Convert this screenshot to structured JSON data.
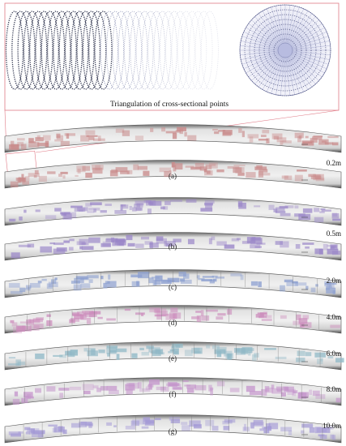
{
  "inset": {
    "title": "Triangulation of cross-sectional points"
  },
  "panels": [
    {
      "caption": "(a)",
      "scale": "0.2m",
      "tint": "#c98a8a"
    },
    {
      "caption": "(b)",
      "scale": "0.5m",
      "tint": "#9a86c8"
    },
    {
      "caption": "(c)",
      "scale": "2.0m",
      "tint": "#8a9ed0"
    },
    {
      "caption": "(d)",
      "scale": "4.0m",
      "tint": "#cc8cbc"
    },
    {
      "caption": "(e)",
      "scale": "6.0m",
      "tint": "#8fb8c6"
    },
    {
      "caption": "(f)",
      "scale": "8.0m",
      "tint": "#c596cc"
    },
    {
      "caption": "(g)",
      "scale": "10.0m",
      "tint": "#a49ad6"
    }
  ],
  "colors": {
    "frame": "#e06a7a",
    "ring_dark": "#2a2f4a",
    "ring_light": "#8a90b4",
    "tunnel_base": "#e8e8e8",
    "tunnel_edge": "#555555"
  }
}
